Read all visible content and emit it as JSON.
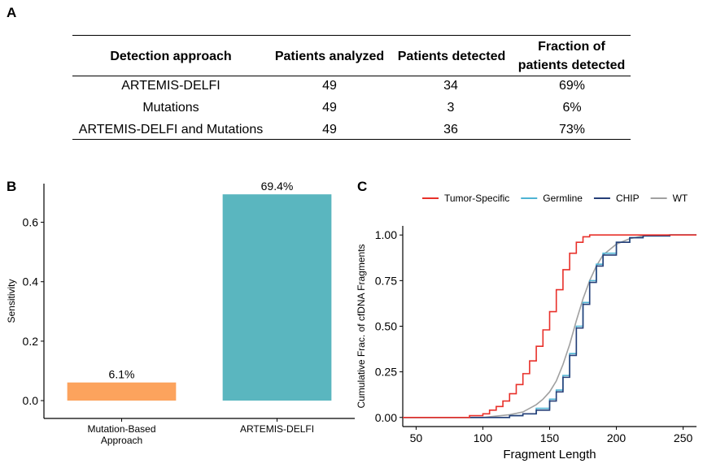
{
  "panel_labels": {
    "a": "A",
    "b": "B",
    "c": "C"
  },
  "table": {
    "headers": [
      "Detection approach",
      "Patients analyzed",
      "Patients detected",
      "Fraction of patients detected"
    ],
    "header_fraction_line1": "Fraction of",
    "header_fraction_line2": "patients detected",
    "rows": [
      {
        "approach": "ARTEMIS-DELFI",
        "analyzed": "49",
        "detected": "34",
        "fraction": "69%"
      },
      {
        "approach": "Mutations",
        "analyzed": "49",
        "detected": "3",
        "fraction": "6%"
      },
      {
        "approach": "ARTEMIS-DELFI and Mutations",
        "analyzed": "49",
        "detected": "36",
        "fraction": "73%"
      }
    ]
  },
  "chart_data": [
    {
      "type": "bar",
      "panel": "B",
      "categories": [
        "Mutation-Based Approach",
        "ARTEMIS-DELFI"
      ],
      "category_lines": [
        [
          "Mutation-Based",
          "Approach"
        ],
        [
          "ARTEMIS-DELFI"
        ]
      ],
      "values": [
        0.061,
        0.694
      ],
      "data_labels": [
        "6.1%",
        "69.4%"
      ],
      "colors": [
        "#FCA35D",
        "#5AB6BF"
      ],
      "ylabel": "Sensitivity",
      "xlabel": "",
      "ylim": [
        -0.06,
        0.73
      ],
      "yticks": [
        0.0,
        0.2,
        0.4,
        0.6
      ],
      "ytick_labels": [
        "0.0",
        "0.2",
        "0.4",
        "0.6"
      ],
      "grid": false
    },
    {
      "type": "line",
      "panel": "C",
      "xlabel": "Fragment Length",
      "ylabel": "Cumulative Frac. of cfDNA Fragments",
      "xlim": [
        40,
        260
      ],
      "ylim": [
        -0.05,
        1.05
      ],
      "xticks": [
        50,
        100,
        150,
        200,
        250
      ],
      "xtick_labels": [
        "50",
        "100",
        "150",
        "200",
        "250"
      ],
      "yticks": [
        0.0,
        0.25,
        0.5,
        0.75,
        1.0
      ],
      "ytick_labels": [
        "0.00",
        "0.25",
        "0.50",
        "0.75",
        "1.00"
      ],
      "legend_position": "top",
      "grid": false,
      "series": [
        {
          "name": "Tumor-Specific",
          "color": "#E8302A",
          "step": true,
          "x": [
            40,
            80,
            90,
            100,
            105,
            110,
            115,
            120,
            125,
            130,
            135,
            140,
            145,
            150,
            155,
            160,
            165,
            170,
            175,
            180,
            190,
            200,
            260
          ],
          "y": [
            0.0,
            0.0,
            0.01,
            0.02,
            0.04,
            0.06,
            0.09,
            0.13,
            0.18,
            0.24,
            0.31,
            0.39,
            0.48,
            0.58,
            0.7,
            0.81,
            0.9,
            0.96,
            0.99,
            1.0,
            1.0,
            1.0,
            1.0
          ]
        },
        {
          "name": "Germline",
          "color": "#4EB3D3",
          "step": true,
          "x": [
            40,
            100,
            120,
            130,
            140,
            150,
            155,
            160,
            165,
            170,
            175,
            180,
            185,
            190,
            200,
            210,
            220,
            240,
            260
          ],
          "y": [
            0.0,
            0.0,
            0.01,
            0.02,
            0.05,
            0.1,
            0.15,
            0.23,
            0.35,
            0.5,
            0.63,
            0.75,
            0.84,
            0.9,
            0.96,
            0.985,
            0.995,
            1.0,
            1.0
          ]
        },
        {
          "name": "CHIP",
          "color": "#253E77",
          "step": true,
          "x": [
            40,
            100,
            120,
            130,
            140,
            150,
            155,
            160,
            165,
            170,
            175,
            180,
            185,
            190,
            200,
            210,
            220,
            240,
            260
          ],
          "y": [
            0.0,
            0.0,
            0.01,
            0.02,
            0.04,
            0.09,
            0.14,
            0.22,
            0.34,
            0.49,
            0.62,
            0.74,
            0.83,
            0.89,
            0.96,
            0.985,
            0.995,
            1.0,
            1.0
          ]
        },
        {
          "name": "WT",
          "color": "#A0A0A0",
          "step": false,
          "x": [
            40,
            100,
            120,
            130,
            140,
            145,
            150,
            155,
            160,
            165,
            170,
            175,
            180,
            185,
            190,
            200,
            210,
            220,
            240,
            260
          ],
          "y": [
            0.0,
            0.0,
            0.015,
            0.03,
            0.07,
            0.1,
            0.14,
            0.2,
            0.29,
            0.4,
            0.53,
            0.65,
            0.75,
            0.83,
            0.89,
            0.95,
            0.98,
            0.995,
            1.0,
            1.0
          ]
        }
      ]
    }
  ]
}
